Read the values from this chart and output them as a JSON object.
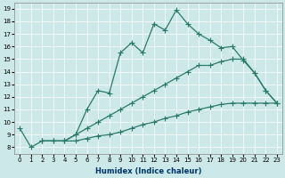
{
  "xlabel": "Humidex (Indice chaleur)",
  "bg_color": "#cde8e8",
  "line_color": "#2a7a6a",
  "x_ticks": [
    0,
    1,
    2,
    3,
    4,
    5,
    6,
    7,
    8,
    9,
    10,
    11,
    12,
    13,
    14,
    15,
    16,
    17,
    18,
    19,
    20,
    21,
    22,
    23
  ],
  "y_ticks": [
    8,
    9,
    10,
    11,
    12,
    13,
    14,
    15,
    16,
    17,
    18,
    19
  ],
  "ylim": [
    7.5,
    19.5
  ],
  "xlim": [
    -0.5,
    23.5
  ],
  "series1_x": [
    0,
    1,
    2,
    3,
    4,
    5,
    6,
    7,
    8,
    9,
    10,
    11,
    12,
    13,
    14,
    15,
    16,
    17,
    18,
    19,
    20,
    21,
    22,
    23
  ],
  "series1_y": [
    9.5,
    8.0,
    8.5,
    8.5,
    8.5,
    9.0,
    11.0,
    12.5,
    12.3,
    15.5,
    16.3,
    15.5,
    17.8,
    17.3,
    18.9,
    17.8,
    17.0,
    16.5,
    15.9,
    16.0,
    14.9,
    13.9,
    12.5,
    11.5
  ],
  "series2_x": [
    2,
    3,
    4,
    5,
    6,
    7,
    8,
    9,
    10,
    11,
    12,
    13,
    14,
    15,
    16,
    17,
    18,
    19,
    20,
    21,
    22,
    23
  ],
  "series2_y": [
    8.5,
    8.5,
    8.5,
    9.0,
    9.5,
    10.0,
    10.5,
    11.0,
    11.5,
    12.0,
    12.5,
    13.0,
    13.5,
    14.0,
    14.5,
    14.5,
    14.8,
    15.0,
    15.0,
    13.9,
    12.5,
    11.5
  ],
  "series3_x": [
    2,
    3,
    4,
    5,
    6,
    7,
    8,
    9,
    10,
    11,
    12,
    13,
    14,
    15,
    16,
    17,
    18,
    19,
    20,
    21,
    22,
    23
  ],
  "series3_y": [
    8.5,
    8.5,
    8.5,
    8.5,
    8.7,
    8.9,
    9.0,
    9.2,
    9.5,
    9.8,
    10.0,
    10.3,
    10.5,
    10.8,
    11.0,
    11.2,
    11.4,
    11.5,
    11.5,
    11.5,
    11.5,
    11.5
  ],
  "marker": "+",
  "markersize": 4,
  "linewidth": 0.9
}
